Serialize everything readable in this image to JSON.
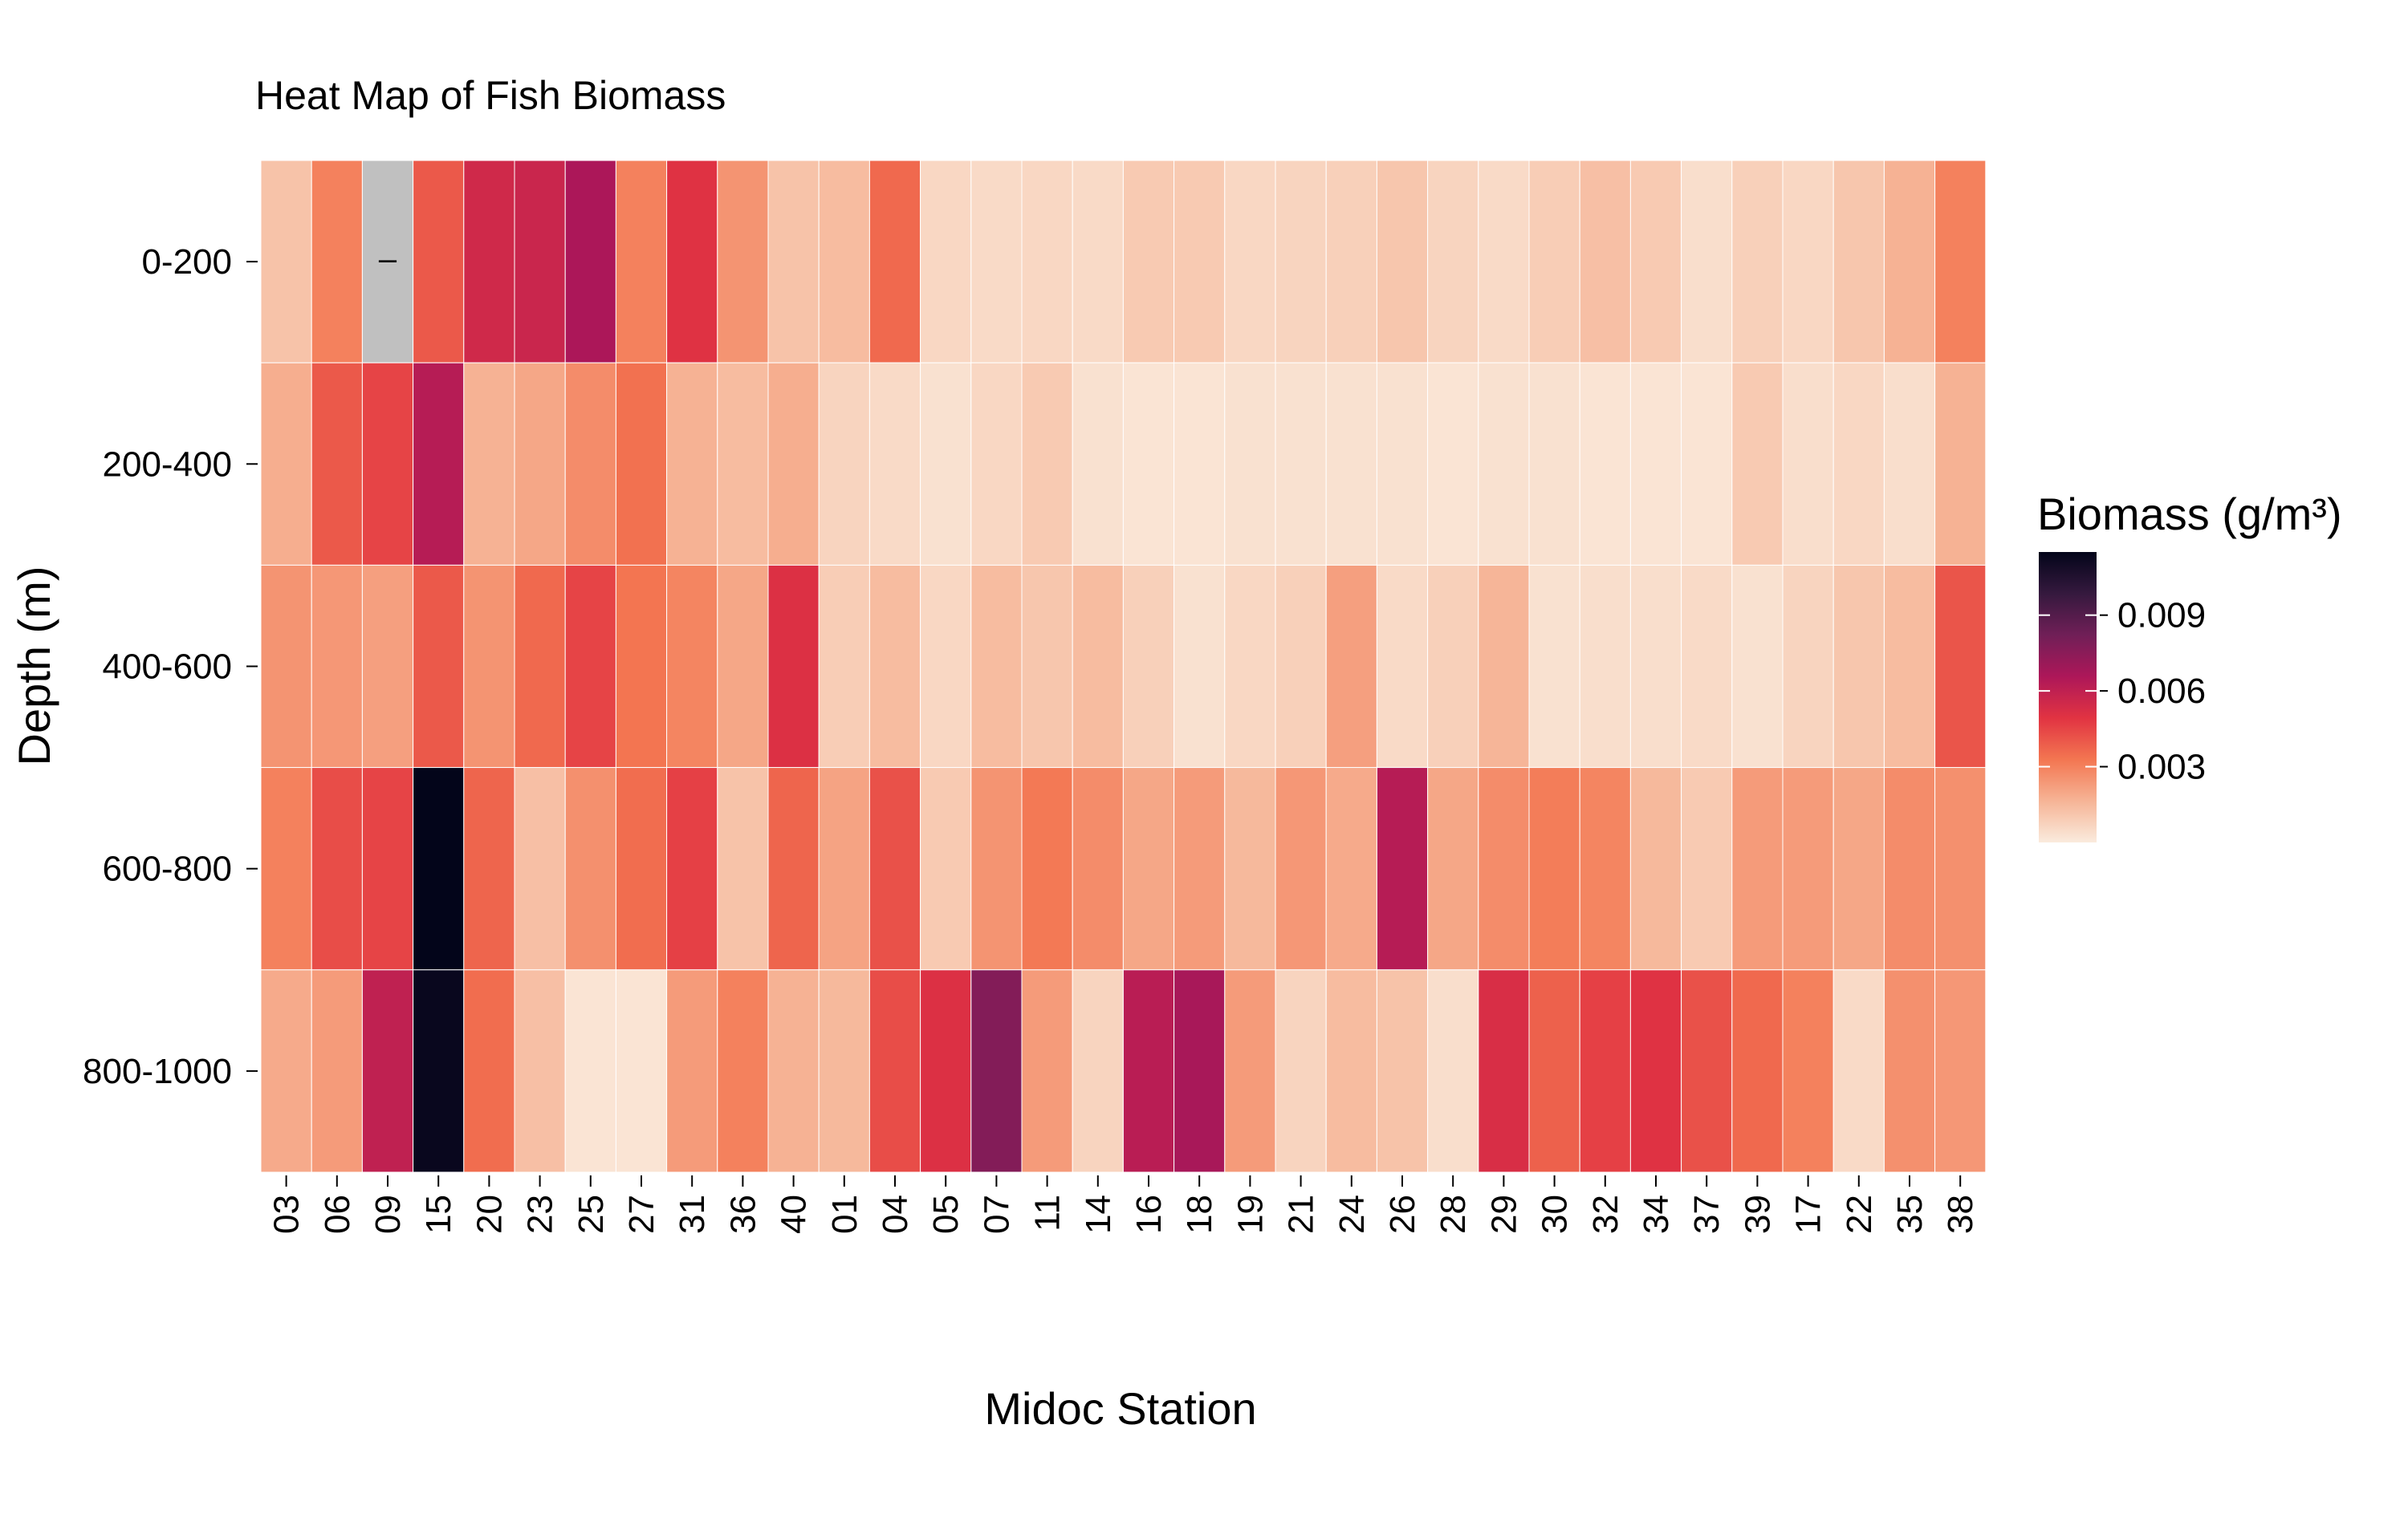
{
  "chart_data": {
    "type": "heatmap",
    "title": "Heat Map of Fish Biomass",
    "xlabel": "Midoc Station",
    "ylabel": "Depth (m)",
    "x_categories": [
      "03",
      "06",
      "09",
      "15",
      "20",
      "23",
      "25",
      "27",
      "31",
      "36",
      "40",
      "01",
      "04",
      "05",
      "07",
      "11",
      "14",
      "16",
      "18",
      "19",
      "21",
      "24",
      "26",
      "28",
      "29",
      "30",
      "32",
      "34",
      "37",
      "39",
      "17",
      "22",
      "35",
      "38"
    ],
    "y_categories": [
      "0-200",
      "200-400",
      "400-600",
      "600-800",
      "800-1000"
    ],
    "values": [
      [
        0.0012,
        0.003,
        null,
        0.004,
        0.0055,
        0.0057,
        0.0066,
        0.003,
        0.005,
        0.0025,
        0.0012,
        0.0014,
        0.0036,
        0.0006,
        0.0005,
        0.0006,
        0.0005,
        0.001,
        0.001,
        0.0006,
        0.0007,
        0.0008,
        0.0011,
        0.0007,
        0.0005,
        0.0009,
        0.0013,
        0.001,
        0.0004,
        0.0008,
        0.0006,
        0.0011,
        0.0017,
        0.003
      ],
      [
        0.0018,
        0.004,
        0.0045,
        0.0063,
        0.0017,
        0.002,
        0.0027,
        0.0034,
        0.0017,
        0.0014,
        0.0018,
        0.0007,
        0.0005,
        0.0003,
        0.0006,
        0.001,
        0.0003,
        0.0002,
        0.0002,
        0.0003,
        0.0003,
        0.0003,
        0.0003,
        0.0002,
        0.0003,
        0.0003,
        0.0002,
        0.0002,
        0.0002,
        0.001,
        0.0004,
        0.0006,
        0.0004,
        0.0017
      ],
      [
        0.0025,
        0.0024,
        0.0022,
        0.004,
        0.0025,
        0.0036,
        0.0045,
        0.0033,
        0.0029,
        0.002,
        0.0051,
        0.0009,
        0.0014,
        0.0006,
        0.0014,
        0.0011,
        0.0014,
        0.0008,
        0.0003,
        0.0006,
        0.0008,
        0.0022,
        0.0005,
        0.0008,
        0.0016,
        0.0003,
        0.0004,
        0.0004,
        0.0005,
        0.0003,
        0.0007,
        0.0011,
        0.0014,
        0.0041
      ],
      [
        0.003,
        0.0043,
        0.0045,
        0.0119,
        0.0037,
        0.0013,
        0.0026,
        0.0035,
        0.0046,
        0.0012,
        0.0037,
        0.0021,
        0.0042,
        0.001,
        0.0025,
        0.0032,
        0.0027,
        0.002,
        0.0023,
        0.0015,
        0.0024,
        0.0019,
        0.0063,
        0.002,
        0.0027,
        0.0031,
        0.0029,
        0.0015,
        0.001,
        0.0023,
        0.0023,
        0.002,
        0.0027,
        0.0026
      ],
      [
        0.0019,
        0.0023,
        0.006,
        0.0113,
        0.0035,
        0.0013,
        0.0002,
        0.0002,
        0.0023,
        0.003,
        0.0017,
        0.0015,
        0.0043,
        0.0051,
        0.0077,
        0.0023,
        0.0007,
        0.0062,
        0.0067,
        0.0023,
        0.0007,
        0.0014,
        0.0012,
        0.0004,
        0.0052,
        0.0038,
        0.0046,
        0.005,
        0.0042,
        0.0036,
        0.003,
        0.0005,
        0.0026,
        0.0024
      ]
    ],
    "missing_label": "–",
    "missing_color": "#c0c0c0",
    "legend": {
      "title": "Biomass (g/m³)",
      "placement": "right",
      "ticks": [
        0.003,
        0.006,
        0.009
      ],
      "tick_labels": [
        "0.003",
        "0.006",
        "0.009"
      ],
      "range": [
        0.0,
        0.0115
      ],
      "colormap": "rocket_r",
      "color_stops": [
        "#faebdd",
        "#f6b496",
        "#f37651",
        "#e13342",
        "#ad1759",
        "#701f57",
        "#35193e",
        "#03051a"
      ]
    },
    "grid": false
  }
}
